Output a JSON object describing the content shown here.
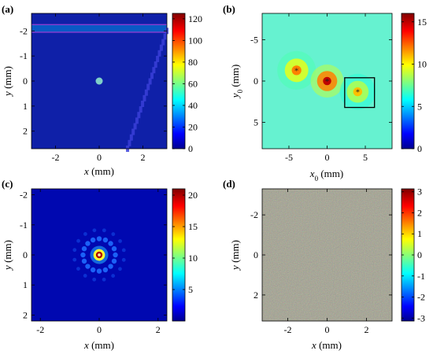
{
  "chart_data": [
    {
      "type": "heatmap",
      "panel_label": "(a)",
      "xlabel_var": "x",
      "xlabel_unit": " (mm)",
      "ylabel_var": "y",
      "ylabel_unit": " (mm)",
      "xlim": [
        -3.1,
        3.1
      ],
      "ylim": [
        -2.7,
        2.7
      ],
      "y_reversed": true,
      "xticks": [
        {
          "v": -2,
          "label": "-2"
        },
        {
          "v": 0,
          "label": "0"
        },
        {
          "v": 2,
          "label": "2"
        }
      ],
      "yticks": [
        {
          "v": -2,
          "label": "-2"
        },
        {
          "v": -1,
          "label": "-1"
        },
        {
          "v": 0,
          "label": "0"
        },
        {
          "v": 1,
          "label": "1"
        },
        {
          "v": 2,
          "label": "2"
        }
      ],
      "colorbar": {
        "range": [
          0,
          125
        ],
        "ticks": [
          {
            "v": 0,
            "label": "0"
          },
          {
            "v": 20,
            "label": "20"
          },
          {
            "v": 40,
            "label": "40"
          },
          {
            "v": 60,
            "label": "60"
          },
          {
            "v": 80,
            "label": "80"
          },
          {
            "v": 100,
            "label": "100"
          },
          {
            "v": 120,
            "label": "120"
          }
        ]
      },
      "background_value": 8,
      "colors": {
        "background": "#0f20a8"
      },
      "features": [
        {
          "kind": "spot",
          "x": 0,
          "y": 0,
          "value": 60,
          "radius": 0.09
        },
        {
          "kind": "band",
          "y_from": -2.25,
          "y_to": -1.95,
          "value": 40
        },
        {
          "kind": "diagonal_artifact",
          "from": [
            1.3,
            2.7
          ],
          "to": [
            3.1,
            -2.0
          ],
          "value": 30
        }
      ]
    },
    {
      "type": "heatmap",
      "panel_label": "(b)",
      "xlabel_var": "x",
      "xlabel_sub": "0",
      "xlabel_unit": " (mm)",
      "ylabel_var": "y",
      "ylabel_sub": "0",
      "ylabel_unit": " (mm)",
      "xlim": [
        -8.5,
        8.5
      ],
      "ylim": [
        -8.2,
        8.2
      ],
      "y_reversed": true,
      "xticks": [
        {
          "v": -5,
          "label": "-5"
        },
        {
          "v": 0,
          "label": "0"
        },
        {
          "v": 5,
          "label": "5"
        }
      ],
      "yticks": [
        {
          "v": -5,
          "label": "-5"
        },
        {
          "v": 0,
          "label": "0"
        },
        {
          "v": 5,
          "label": "5"
        }
      ],
      "colorbar": {
        "range": [
          0,
          16
        ],
        "ticks": [
          {
            "v": 0,
            "label": "0"
          },
          {
            "v": 5,
            "label": "5"
          },
          {
            "v": 10,
            "label": "10"
          },
          {
            "v": 15,
            "label": "15"
          }
        ]
      },
      "background_value": 5,
      "colors": {
        "background": "#66f2d0"
      },
      "features": [
        {
          "kind": "spot",
          "x": -4,
          "y": -1.3,
          "value": 12,
          "radius": 1.4
        },
        {
          "kind": "spot",
          "x": 0,
          "y": 0,
          "value": 15,
          "radius": 1.2
        },
        {
          "kind": "spot",
          "x": 4,
          "y": 1.3,
          "value": 11,
          "radius": 1.3
        }
      ],
      "box": {
        "x0": 2.3,
        "x1": 6.2,
        "y0": -0.4,
        "y1": 3.2
      }
    },
    {
      "type": "heatmap",
      "panel_label": "(c)",
      "xlabel_var": "x",
      "xlabel_unit": " (mm)",
      "ylabel_var": "y",
      "ylabel_unit": " (mm)",
      "xlim": [
        -2.3,
        2.3
      ],
      "ylim": [
        -2.2,
        2.2
      ],
      "y_reversed": true,
      "xticks": [
        {
          "v": -2,
          "label": "-2"
        },
        {
          "v": 0,
          "label": "0"
        },
        {
          "v": 2,
          "label": "2"
        }
      ],
      "yticks": [
        {
          "v": -2,
          "label": "-2"
        },
        {
          "v": -1,
          "label": "-1"
        },
        {
          "v": 0,
          "label": "0"
        },
        {
          "v": 1,
          "label": "1"
        },
        {
          "v": 2,
          "label": "2"
        }
      ],
      "colorbar": {
        "range": [
          0,
          21
        ],
        "ticks": [
          {
            "v": 5,
            "label": "5"
          },
          {
            "v": 10,
            "label": "10"
          },
          {
            "v": 15,
            "label": "15"
          },
          {
            "v": 20,
            "label": "20"
          }
        ]
      },
      "background_value": 1,
      "colors": {
        "background": "#0008b0"
      },
      "features": [
        {
          "kind": "ring_spot",
          "x": 0,
          "y": 0,
          "value": 20,
          "radius": 0.14
        },
        {
          "kind": "radial_spokes",
          "x": 0,
          "y": 0,
          "count": 16,
          "radius": 0.55,
          "value": 4
        }
      ]
    },
    {
      "type": "heatmap",
      "panel_label": "(d)",
      "xlabel_var": "x",
      "xlabel_unit": " (mm)",
      "ylabel_var": "y",
      "ylabel_unit": " (mm)",
      "xlim": [
        -3.3,
        3.3
      ],
      "ylim": [
        -3.3,
        3.3
      ],
      "y_reversed": true,
      "xticks": [
        {
          "v": -2,
          "label": "-2"
        },
        {
          "v": 0,
          "label": "0"
        },
        {
          "v": 2,
          "label": "2"
        }
      ],
      "yticks": [
        {
          "v": -2,
          "label": "-2"
        },
        {
          "v": 0,
          "label": "0"
        },
        {
          "v": 2,
          "label": "2"
        }
      ],
      "colorbar": {
        "range": [
          -3.14,
          3.14
        ],
        "ticks": [
          {
            "v": -3,
            "label": "-3"
          },
          {
            "v": -2,
            "label": "-2"
          },
          {
            "v": -1,
            "label": "-1"
          },
          {
            "v": 0,
            "label": "0"
          },
          {
            "v": 1,
            "label": "1"
          },
          {
            "v": 2,
            "label": "2"
          },
          {
            "v": 3,
            "label": "3"
          }
        ]
      },
      "background_value": 0,
      "colors": {
        "background": "#8a8a78"
      },
      "features": [
        {
          "kind": "noise",
          "amplitude": 3.14
        }
      ]
    }
  ]
}
